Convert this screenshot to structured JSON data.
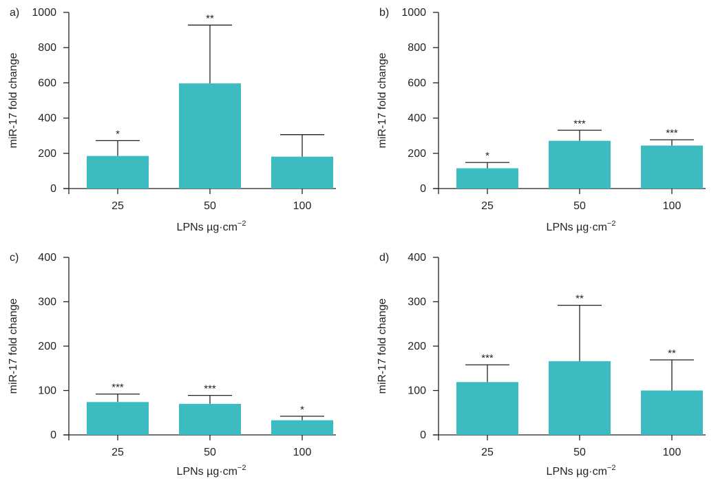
{
  "colors": {
    "bar": "#3cbcc0",
    "axis": "#231f20"
  },
  "chart_data": [
    {
      "type": "bar",
      "panel": "a)",
      "categories": [
        "25",
        "50",
        "100"
      ],
      "values": [
        185,
        597,
        181
      ],
      "error_upper": [
        272,
        928,
        306
      ],
      "significance": [
        "*",
        "**",
        ""
      ],
      "xlabel": "LPNs µg·cm",
      "xlabel_sup": "−2",
      "ylabel": "miR-17 fold change",
      "ylim": [
        0,
        1000
      ],
      "yticks": [
        0,
        200,
        400,
        600,
        800,
        1000
      ]
    },
    {
      "type": "bar",
      "panel": "b)",
      "categories": [
        "25",
        "50",
        "100"
      ],
      "values": [
        115,
        271,
        244
      ],
      "error_upper": [
        148,
        331,
        277
      ],
      "significance": [
        "*",
        "***",
        "***"
      ],
      "xlabel": "LPNs µg·cm",
      "xlabel_sup": "−2",
      "ylabel": "miR-17 fold change",
      "ylim": [
        0,
        1000
      ],
      "yticks": [
        0,
        200,
        400,
        600,
        800,
        1000
      ]
    },
    {
      "type": "bar",
      "panel": "c)",
      "categories": [
        "25",
        "50",
        "100"
      ],
      "values": [
        74,
        70,
        33
      ],
      "error_upper": [
        92,
        89,
        42
      ],
      "significance": [
        "***",
        "***",
        "*"
      ],
      "xlabel": "LPNs µg·cm",
      "xlabel_sup": "−2",
      "ylabel": "miR-17 fold change",
      "ylim": [
        0,
        400
      ],
      "yticks": [
        0,
        100,
        200,
        300,
        400
      ]
    },
    {
      "type": "bar",
      "panel": "d)",
      "categories": [
        "25",
        "50",
        "100"
      ],
      "values": [
        119,
        166,
        100
      ],
      "error_upper": [
        158,
        292,
        169
      ],
      "significance": [
        "***",
        "**",
        "**"
      ],
      "xlabel": "LPNs µg·cm",
      "xlabel_sup": "−2",
      "ylabel": "miR-17 fold change",
      "ylim": [
        0,
        400
      ],
      "yticks": [
        0,
        100,
        200,
        300,
        400
      ]
    }
  ]
}
